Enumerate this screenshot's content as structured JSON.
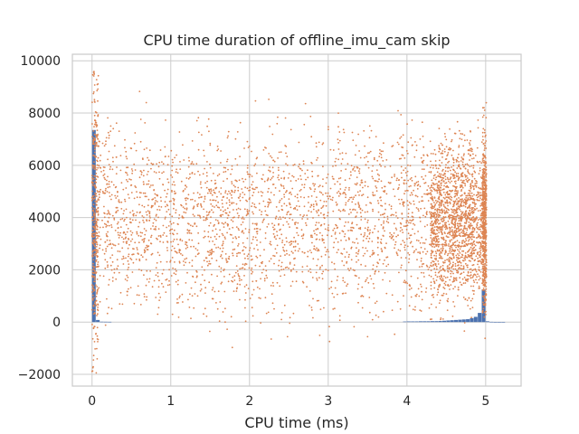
{
  "chart_data": {
    "type": "bar",
    "title": "CPU time duration of offline_imu_cam skip",
    "xlabel": "CPU time (ms)",
    "ylabel": "",
    "xlim": [
      -0.25,
      5.45
    ],
    "ylim": [
      -2450,
      10250
    ],
    "grid": true,
    "x_ticks": [
      {
        "value": 0,
        "label": "0"
      },
      {
        "value": 1,
        "label": "1"
      },
      {
        "value": 2,
        "label": "2"
      },
      {
        "value": 3,
        "label": "3"
      },
      {
        "value": 4,
        "label": "4"
      },
      {
        "value": 5,
        "label": "5"
      }
    ],
    "y_ticks": [
      {
        "value": -2000,
        "label": "−2000"
      },
      {
        "value": 0,
        "label": "0"
      },
      {
        "value": 2000,
        "label": "2000"
      },
      {
        "value": 4000,
        "label": "4000"
      },
      {
        "value": 6000,
        "label": "6000"
      },
      {
        "value": 8000,
        "label": "8000"
      },
      {
        "value": 10000,
        "label": "10000"
      }
    ],
    "series": [
      {
        "type": "bar",
        "color": "#4c72b0",
        "bin_width": 0.05,
        "x": [
          0.025,
          0.075,
          0.125,
          0.175,
          0.225,
          3.975,
          4.025,
          4.075,
          4.125,
          4.175,
          4.225,
          4.275,
          4.325,
          4.375,
          4.425,
          4.475,
          4.525,
          4.575,
          4.625,
          4.675,
          4.725,
          4.775,
          4.825,
          4.875,
          4.925,
          4.975,
          5.025,
          5.075,
          5.125,
          5.175,
          5.225
        ],
        "values": [
          7350,
          80,
          15,
          12,
          10,
          20,
          25,
          25,
          25,
          30,
          30,
          30,
          35,
          35,
          40,
          50,
          60,
          70,
          80,
          90,
          100,
          110,
          150,
          200,
          350,
          1250,
          30,
          10,
          5,
          5,
          5
        ]
      },
      {
        "type": "scatter",
        "color": "#dd8452",
        "description_points": "dense cloud between x=0 and x=5, y roughly -2000 to 9700",
        "clusters": [
          {
            "x_min": 0.0,
            "x_max": 0.08,
            "y_center": 4000,
            "y_spread": 2700,
            "count": 350
          },
          {
            "x_min": 0.08,
            "x_max": 4.85,
            "y_center": 3900,
            "y_spread": 1700,
            "count": 2800
          },
          {
            "x_min": 4.3,
            "x_max": 5.0,
            "y_center": 3900,
            "y_spread": 1400,
            "count": 1400
          },
          {
            "x_min": 4.96,
            "x_max": 5.01,
            "y_center": 3800,
            "y_spread": 1600,
            "count": 450
          }
        ]
      }
    ]
  }
}
